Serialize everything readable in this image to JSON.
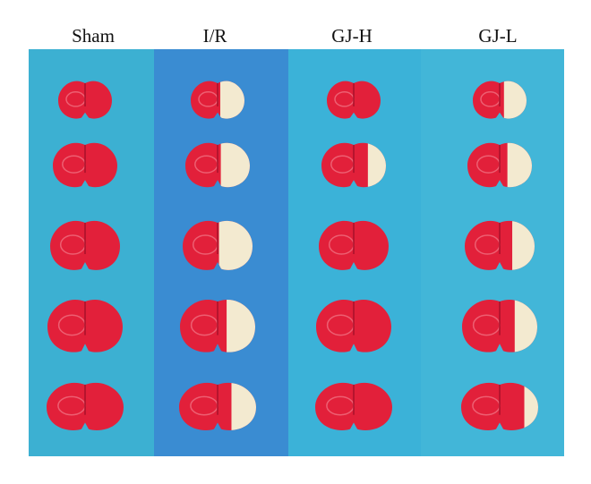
{
  "labels": [
    "Sham",
    "I/R",
    "GJ-H",
    "GJ-L"
  ]
}
